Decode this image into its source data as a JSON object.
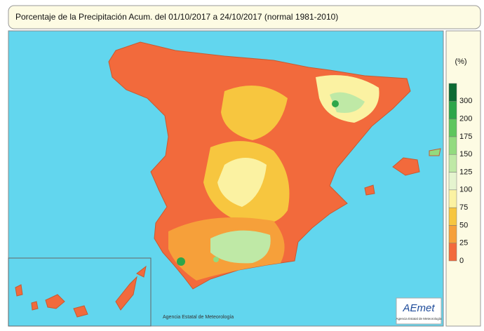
{
  "header": {
    "title": "Porcentaje de la Precipitación Acum. del 01/10/2017 a  24/10/2017  (normal 1981-2010)"
  },
  "legend": {
    "unit": "(%)",
    "ticks": [
      "0",
      "25",
      "50",
      "75",
      "100",
      "125",
      "150",
      "175",
      "200",
      "300"
    ],
    "colors": [
      "#f26a3c",
      "#f6a03a",
      "#f7c63f",
      "#fbf2a2",
      "#e5f4cf",
      "#bfe9a6",
      "#93db7f",
      "#5ec65d",
      "#2ea64a",
      "#0d6a33"
    ]
  },
  "credit": "Agencia Estatal de Meteorología",
  "logo": {
    "name": "AEmet",
    "subtitle": "Agencia Estatal de Meteorología"
  }
}
